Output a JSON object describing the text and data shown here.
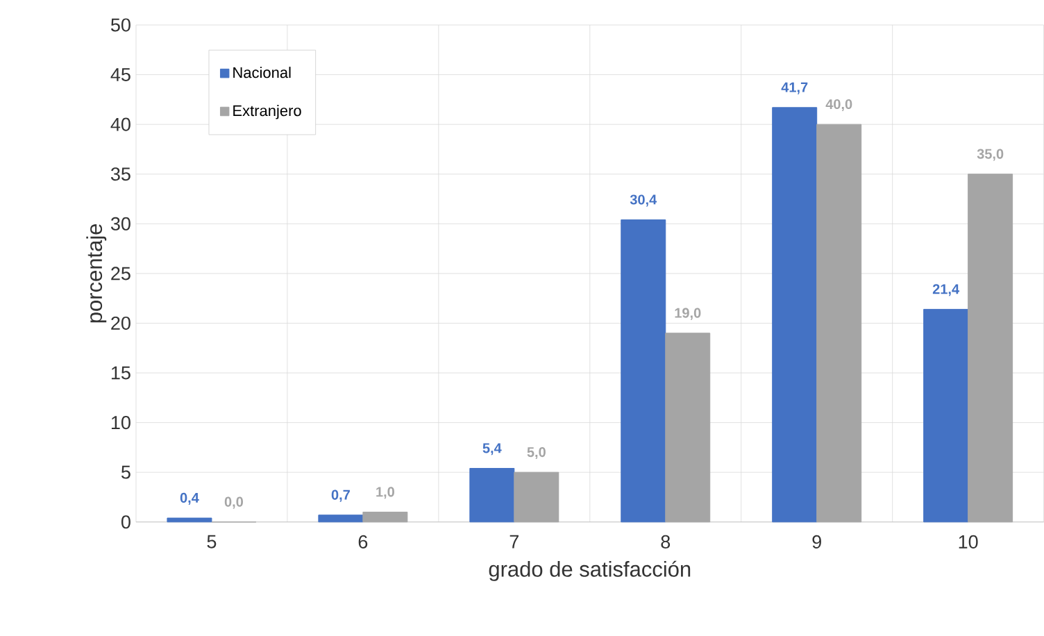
{
  "chart_data": {
    "type": "bar",
    "xlabel": "grado de satisfacción",
    "ylabel": "porcentaje",
    "categories": [
      "5",
      "6",
      "7",
      "8",
      "9",
      "10"
    ],
    "series": [
      {
        "name": "Nacional",
        "color": "#4472c4",
        "values": [
          0.4,
          0.7,
          5.4,
          30.4,
          41.7,
          21.4
        ],
        "value_labels": [
          "0,4",
          "0,7",
          "5,4",
          "30,4",
          "41,7",
          "21,4"
        ]
      },
      {
        "name": "Extranjero",
        "color": "#a5a5a5",
        "values": [
          0.0,
          1.0,
          5.0,
          19.0,
          40.0,
          35.0
        ],
        "value_labels": [
          "0,0",
          "1,0",
          "5,0",
          "19,0",
          "40,0",
          "35,0"
        ]
      }
    ],
    "ylim": [
      0,
      50
    ],
    "yticks": [
      0,
      5,
      10,
      15,
      20,
      25,
      30,
      35,
      40,
      45,
      50
    ],
    "grid": true,
    "legend": "top left"
  }
}
